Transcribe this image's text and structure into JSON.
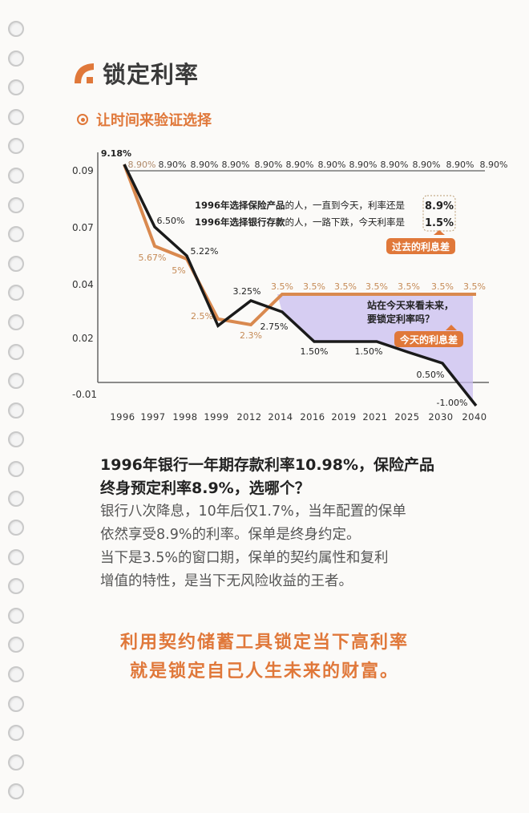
{
  "header": {
    "title": "锁定利率",
    "subtitle": "让时间来验证选择",
    "accent": "#e0783a"
  },
  "chart_data": {
    "type": "line",
    "categories": [
      "1996",
      "1997",
      "1998",
      "1999",
      "2012",
      "2014",
      "2016",
      "2019",
      "2021",
      "2025",
      "2030",
      "2040"
    ],
    "y_tick_labels": [
      "0.09",
      "0.07",
      "0.04",
      "0.02",
      "-0.01"
    ],
    "series": [
      {
        "key": "bank",
        "color": "#1a1a1a",
        "values": [
          9.18,
          6.5,
          5.22,
          2.25,
          3.25,
          2.75,
          1.5,
          1.5,
          1.5,
          1.0,
          0.5,
          -1.0
        ],
        "labels": [
          "9.18%",
          "6.50%",
          "5.22%",
          "",
          "3.25%",
          "2.75%",
          "1.50%",
          "",
          "1.50%",
          "",
          "0.50%",
          "-1.00%"
        ]
      },
      {
        "key": "insurance_market",
        "color": "#d9894f",
        "values": [
          9.18,
          5.67,
          5,
          2.5,
          2.3,
          3.5,
          3.5,
          3.5,
          3.5,
          3.5,
          3.5,
          3.5
        ],
        "labels": [
          "",
          "5.67%",
          "5%",
          "2.5%",
          "2.3%",
          "3.5%",
          "3.5%",
          "3.5%",
          "3.5%",
          "3.5%",
          "3.5%",
          "3.5%"
        ]
      },
      {
        "key": "locked_8_9",
        "color": "#777777",
        "values": [
          8.9,
          8.9,
          8.9,
          8.9,
          8.9,
          8.9,
          8.9,
          8.9,
          8.9,
          8.9,
          8.9,
          8.9
        ],
        "labels": [
          "8.90%",
          "8.90%",
          "8.90%",
          "8.90%",
          "8.90%",
          "8.90%",
          "8.90%",
          "8.90%",
          "8.90%",
          "8.90%",
          "8.90%",
          "8.90%"
        ]
      }
    ],
    "shaded_area_color": "#c9bdf0",
    "annotations": {
      "line1_bold": "1996年选择保险产品",
      "line1_rest": "的人，一直到今天，利率还是",
      "line1_value": "8.9%",
      "line2_bold": "1996年选择银行存款",
      "line2_rest": "的人，一路下跌，今天利率是",
      "line2_value": "1.5%",
      "past_gap": "过去的利息差",
      "question_1": "站在今天来看未来，",
      "question_2": "要锁定利率吗？",
      "today_gap": "今天的利息差"
    }
  },
  "body": {
    "question_line1": "1996年银行一年期存款利率10.98%，保险产品",
    "question_line2": "终身预定利率8.9%，选哪个？",
    "para": [
      "银行八次降息，10年后仅1.7%，当年配置的保单",
      "依然享受8.9%的利率。保单是终身约定。",
      "当下是3.5%的窗口期，保单的契约属性和复利",
      "增值的特性，是当下无风险收益的王者。"
    ]
  },
  "slogan": [
    "利用契约储蓄工具锁定当下高利率",
    "就是锁定自己人生未来的财富。"
  ]
}
